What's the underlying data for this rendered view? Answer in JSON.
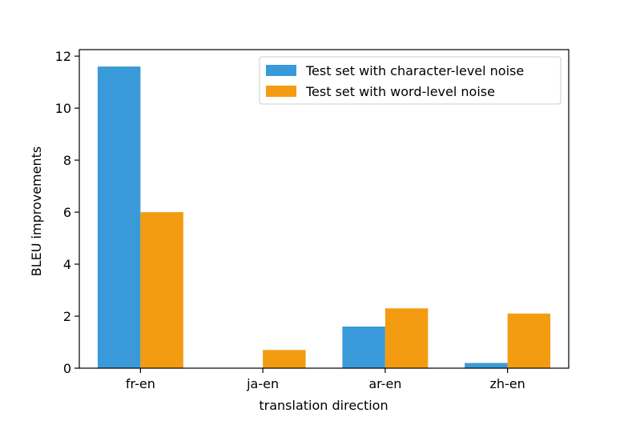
{
  "chart_data": {
    "type": "bar",
    "title": "",
    "xlabel": "translation direction",
    "ylabel": "BLEU improvements",
    "categories": [
      "fr-en",
      "ja-en",
      "ar-en",
      "zh-en"
    ],
    "series": [
      {
        "name": "Test set with character-level noise",
        "color": "#3a9ad9",
        "values": [
          11.6,
          0.0,
          1.6,
          0.2
        ]
      },
      {
        "name": "Test set with word-level noise",
        "color": "#f39c12",
        "values": [
          6.0,
          0.7,
          2.3,
          2.1
        ]
      }
    ],
    "ylim": [
      0,
      12.25
    ],
    "yticks": [
      0,
      2,
      4,
      6,
      8,
      10,
      12
    ],
    "grid": false,
    "legend_position": "top-right"
  }
}
